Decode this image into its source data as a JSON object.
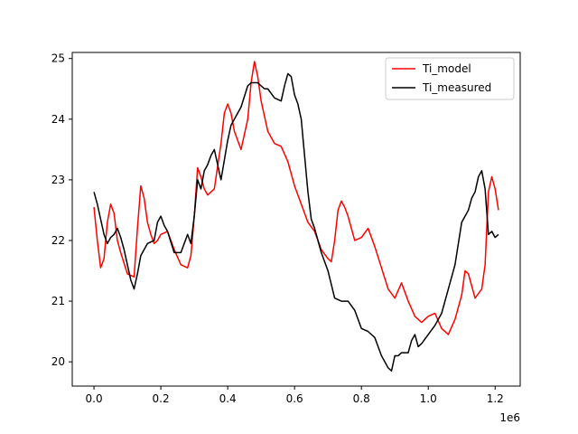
{
  "chart_data": {
    "type": "line",
    "title": "",
    "xlabel": "",
    "ylabel": "",
    "x_offset_label": "1e6",
    "xlim": [
      -65000,
      1275000
    ],
    "ylim": [
      19.6,
      25.1
    ],
    "x_ticks": [
      0,
      200000,
      400000,
      600000,
      800000,
      1000000,
      1200000
    ],
    "x_tick_labels": [
      "0.0",
      "0.2",
      "0.4",
      "0.6",
      "0.8",
      "1.0",
      "1.2"
    ],
    "y_ticks": [
      20,
      21,
      22,
      23,
      24,
      25
    ],
    "y_tick_labels": [
      "20",
      "21",
      "22",
      "23",
      "24",
      "25"
    ],
    "grid": false,
    "legend_position": "top-right",
    "series": [
      {
        "name": "Ti_model",
        "color": "#ff0000",
        "x": [
          0,
          10000,
          20000,
          30000,
          40000,
          50000,
          60000,
          70000,
          80000,
          100000,
          120000,
          130000,
          140000,
          150000,
          160000,
          170000,
          180000,
          190000,
          200000,
          220000,
          240000,
          260000,
          280000,
          290000,
          300000,
          310000,
          320000,
          330000,
          340000,
          360000,
          380000,
          390000,
          400000,
          410000,
          420000,
          440000,
          460000,
          470000,
          480000,
          490000,
          500000,
          520000,
          540000,
          560000,
          580000,
          600000,
          620000,
          640000,
          660000,
          680000,
          700000,
          710000,
          720000,
          730000,
          740000,
          750000,
          760000,
          780000,
          800000,
          820000,
          840000,
          860000,
          880000,
          900000,
          920000,
          940000,
          960000,
          980000,
          1000000,
          1020000,
          1040000,
          1060000,
          1080000,
          1100000,
          1110000,
          1120000,
          1140000,
          1160000,
          1170000,
          1180000,
          1190000,
          1200000,
          1210000
        ],
        "y": [
          22.55,
          22.0,
          21.55,
          21.7,
          22.3,
          22.6,
          22.45,
          22.0,
          21.8,
          21.45,
          21.4,
          22.2,
          22.9,
          22.7,
          22.3,
          22.1,
          21.95,
          22.0,
          22.1,
          22.15,
          21.85,
          21.6,
          21.55,
          21.75,
          22.4,
          23.2,
          23.05,
          22.85,
          22.75,
          22.85,
          23.6,
          24.1,
          24.25,
          24.1,
          23.8,
          23.5,
          24.0,
          24.6,
          24.95,
          24.7,
          24.3,
          23.8,
          23.6,
          23.55,
          23.3,
          22.9,
          22.6,
          22.3,
          22.15,
          21.85,
          21.7,
          21.65,
          22.0,
          22.5,
          22.65,
          22.55,
          22.4,
          22.0,
          22.05,
          22.2,
          21.9,
          21.55,
          21.2,
          21.05,
          21.3,
          21.0,
          20.75,
          20.65,
          20.75,
          20.8,
          20.55,
          20.45,
          20.7,
          21.1,
          21.5,
          21.45,
          21.05,
          21.2,
          21.6,
          22.8,
          23.05,
          22.85,
          22.5
        ]
      },
      {
        "name": "Ti_measured",
        "color": "#000000",
        "x": [
          0,
          10000,
          20000,
          30000,
          40000,
          50000,
          60000,
          70000,
          80000,
          90000,
          100000,
          110000,
          120000,
          130000,
          140000,
          160000,
          180000,
          190000,
          200000,
          210000,
          220000,
          240000,
          260000,
          280000,
          290000,
          300000,
          310000,
          320000,
          330000,
          340000,
          350000,
          360000,
          380000,
          400000,
          410000,
          420000,
          440000,
          460000,
          470000,
          480000,
          490000,
          500000,
          510000,
          520000,
          540000,
          560000,
          570000,
          580000,
          590000,
          600000,
          610000,
          620000,
          630000,
          640000,
          650000,
          660000,
          680000,
          700000,
          720000,
          740000,
          760000,
          780000,
          800000,
          820000,
          840000,
          860000,
          880000,
          890000,
          900000,
          910000,
          920000,
          940000,
          950000,
          960000,
          970000,
          980000,
          1000000,
          1020000,
          1040000,
          1060000,
          1080000,
          1100000,
          1120000,
          1130000,
          1140000,
          1150000,
          1160000,
          1170000,
          1180000,
          1190000,
          1200000,
          1210000
        ],
        "y": [
          22.8,
          22.6,
          22.35,
          22.1,
          21.95,
          22.05,
          22.1,
          22.2,
          22.05,
          21.85,
          21.6,
          21.35,
          21.2,
          21.45,
          21.75,
          21.95,
          22.0,
          22.3,
          22.4,
          22.25,
          22.15,
          21.8,
          21.8,
          22.1,
          21.95,
          22.4,
          23.0,
          22.85,
          23.15,
          23.25,
          23.4,
          23.5,
          23.0,
          23.65,
          23.9,
          24.0,
          24.2,
          24.55,
          24.6,
          24.6,
          24.6,
          24.55,
          24.5,
          24.5,
          24.35,
          24.3,
          24.55,
          24.75,
          24.7,
          24.4,
          24.25,
          24.0,
          23.4,
          22.8,
          22.35,
          22.2,
          21.8,
          21.5,
          21.05,
          21.0,
          21.0,
          20.85,
          20.55,
          20.5,
          20.4,
          20.1,
          19.9,
          19.85,
          20.1,
          20.1,
          20.15,
          20.15,
          20.35,
          20.45,
          20.25,
          20.3,
          20.45,
          20.6,
          20.8,
          21.2,
          21.6,
          22.3,
          22.5,
          22.7,
          22.8,
          23.05,
          23.15,
          22.85,
          22.1,
          22.15,
          22.05,
          22.1
        ]
      }
    ]
  }
}
